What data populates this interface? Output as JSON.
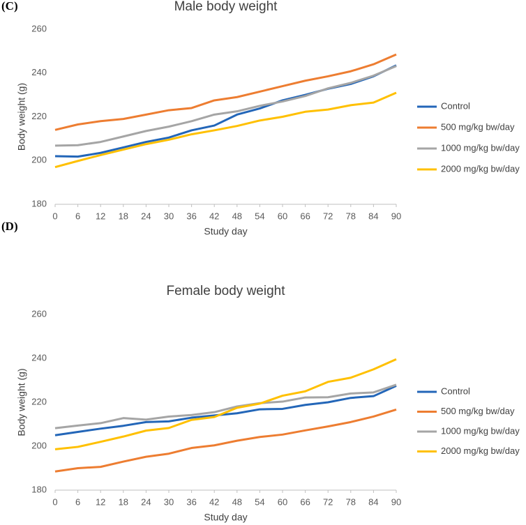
{
  "chart_data": [
    {
      "type": "line",
      "panel_label": "(C)",
      "title": "Male body weight",
      "xlabel": "Study day",
      "ylabel": "Body weight (g)",
      "x": [
        0,
        6,
        12,
        18,
        24,
        30,
        36,
        42,
        48,
        54,
        60,
        66,
        72,
        78,
        84,
        90
      ],
      "xlim": [
        0,
        90
      ],
      "xticks": [
        0,
        6,
        12,
        18,
        24,
        30,
        36,
        42,
        48,
        54,
        60,
        66,
        72,
        78,
        84,
        90
      ],
      "ylim": [
        180,
        260
      ],
      "yticks": [
        180,
        200,
        220,
        240,
        260
      ],
      "grid": false,
      "legend": "right",
      "series": [
        {
          "name": "Control",
          "color": "#2366b8",
          "values": [
            202,
            201.8,
            203.5,
            206,
            208.5,
            210.5,
            213.8,
            216,
            221,
            223.8,
            227.5,
            230,
            232.8,
            235,
            238.5,
            243.5
          ]
        },
        {
          "name": "500 mg/kg bw/day",
          "color": "#ed7d31",
          "values": [
            214,
            216.5,
            218,
            219,
            221,
            223,
            224,
            227.5,
            229,
            231.5,
            234,
            236.5,
            238.5,
            240.8,
            244,
            248.5
          ]
        },
        {
          "name": "1000 mg/kg bw/day",
          "color": "#a5a5a5",
          "values": [
            206.8,
            207,
            208.5,
            211,
            213.5,
            215.5,
            218,
            221,
            222.5,
            225,
            227,
            229.5,
            233,
            235.5,
            238.8,
            243.2
          ]
        },
        {
          "name": "2000 mg/kg bw/day",
          "color": "#ffc000",
          "values": [
            197,
            199.8,
            202.5,
            205,
            207.5,
            209.5,
            212,
            213.8,
            215.8,
            218.3,
            220,
            222.3,
            223.3,
            225.3,
            226.5,
            231
          ]
        }
      ]
    },
    {
      "type": "line",
      "panel_label": "(D)",
      "title": "Female body weight",
      "xlabel": "Study day",
      "ylabel": "Body weight (g)",
      "x": [
        0,
        6,
        12,
        18,
        24,
        30,
        36,
        42,
        48,
        54,
        60,
        66,
        72,
        78,
        84,
        90
      ],
      "xlim": [
        0,
        90
      ],
      "xticks": [
        0,
        6,
        12,
        18,
        24,
        30,
        36,
        42,
        48,
        54,
        60,
        66,
        72,
        78,
        84,
        90
      ],
      "ylim": [
        180,
        260
      ],
      "yticks": [
        180,
        200,
        220,
        240,
        260
      ],
      "grid": false,
      "legend": "right",
      "series": [
        {
          "name": "Control",
          "color": "#2366b8",
          "values": [
            205,
            206.5,
            208,
            209.3,
            211,
            211.3,
            213,
            214,
            215,
            216.8,
            217,
            218.8,
            220,
            222,
            222.8,
            227.5
          ]
        },
        {
          "name": "500 mg/kg bw/day",
          "color": "#ed7d31",
          "values": [
            188.5,
            190,
            190.6,
            193,
            195.2,
            196.6,
            199.2,
            200.4,
            202.5,
            204.2,
            205.3,
            207.2,
            209,
            211,
            213.5,
            216.7
          ]
        },
        {
          "name": "1000 mg/kg bw/day",
          "color": "#a5a5a5",
          "values": [
            208.2,
            209.4,
            210.5,
            212.8,
            212.1,
            213.5,
            214.2,
            215.5,
            218.1,
            219.6,
            220.3,
            222.2,
            222.3,
            224,
            224.5,
            228
          ]
        },
        {
          "name": "2000 mg/kg bw/day",
          "color": "#ffc000",
          "values": [
            198.6,
            199.7,
            202,
            204.4,
            207.1,
            208.3,
            212,
            213.3,
            217.5,
            219.4,
            223,
            225,
            229.3,
            231.2,
            235,
            239.6
          ]
        }
      ]
    }
  ]
}
